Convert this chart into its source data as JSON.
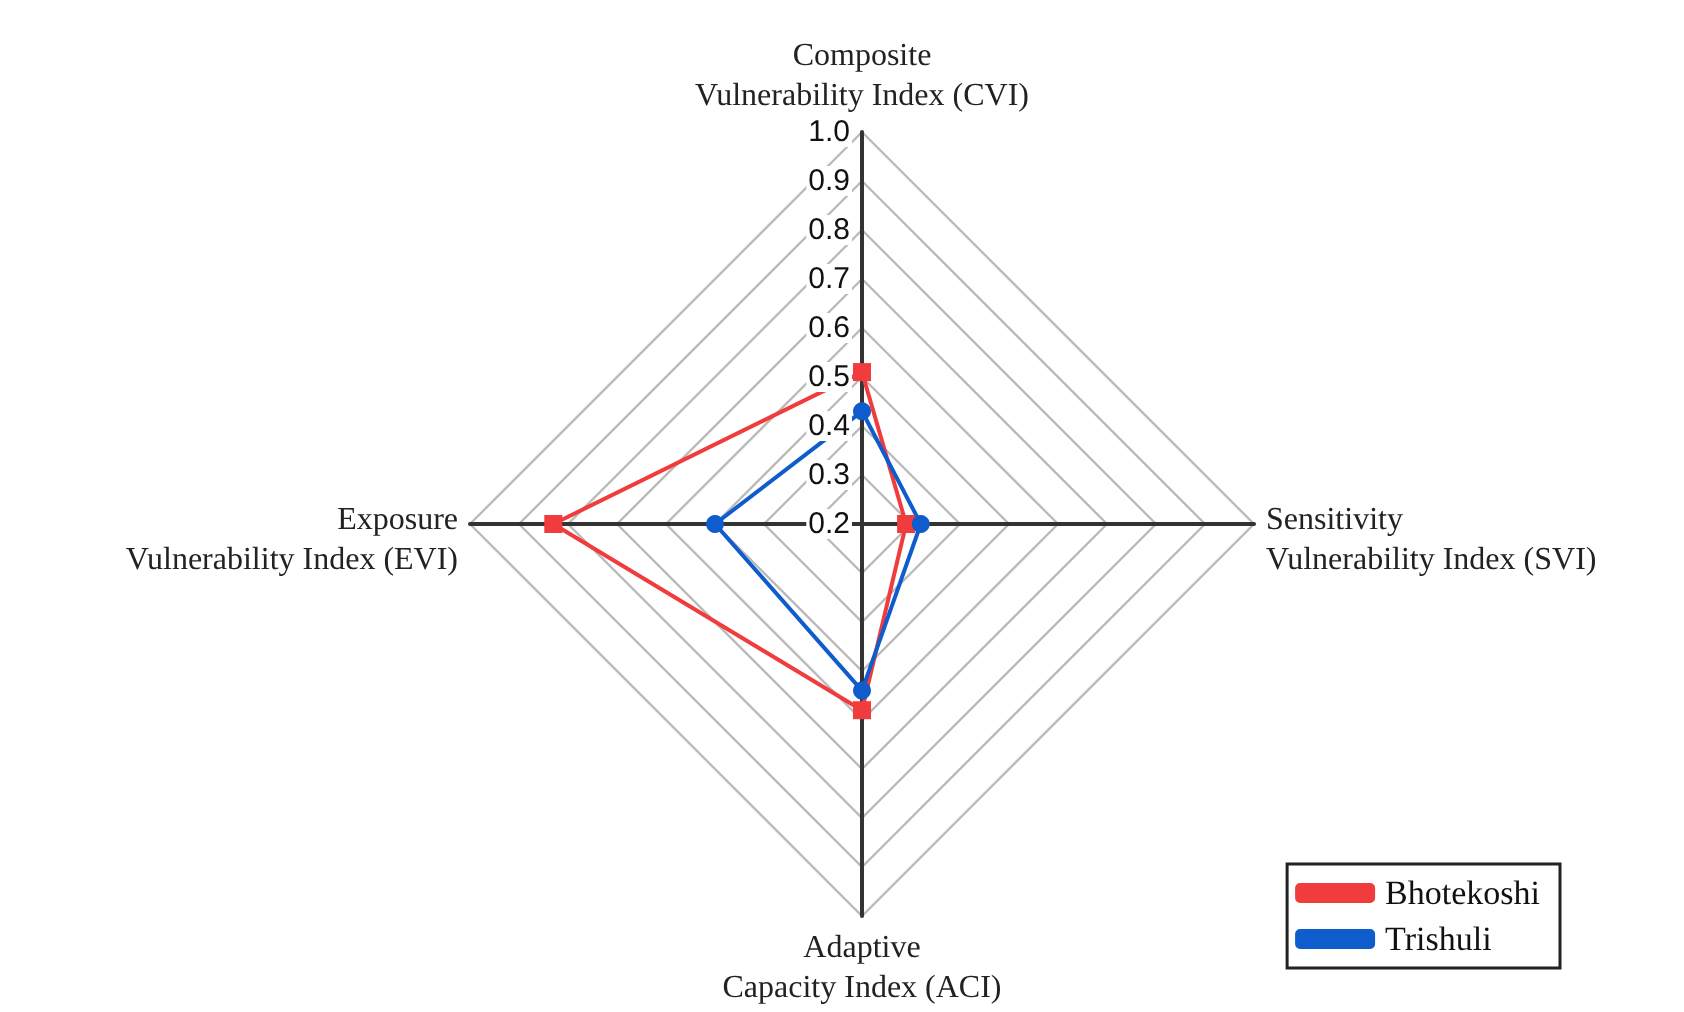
{
  "chart_data": {
    "type": "radar",
    "categories": [
      "Composite Vulnerability Index (CVI)",
      "Sensitivity Vulnerability Index (SVI)",
      "Adaptive Capacity Index (ACI)",
      "Exposure Vulnerability Index (EVI)"
    ],
    "series": [
      {
        "name": "Bhotekoshi",
        "color": "#f03c3c",
        "marker": "square",
        "values": [
          0.51,
          0.29,
          0.58,
          0.83
        ]
      },
      {
        "name": "Trishuli",
        "color": "#0f5ccc",
        "marker": "circle",
        "values": [
          0.43,
          0.32,
          0.54,
          0.5
        ]
      }
    ],
    "ylim": [
      0.2,
      1.0
    ],
    "yticks": [
      0.2,
      0.3,
      0.4,
      0.5,
      0.6,
      0.7,
      0.8,
      0.9,
      {
        "value": 1,
        "label": "1.0"
      }
    ],
    "grid": true,
    "legend": "bottom right"
  }
}
